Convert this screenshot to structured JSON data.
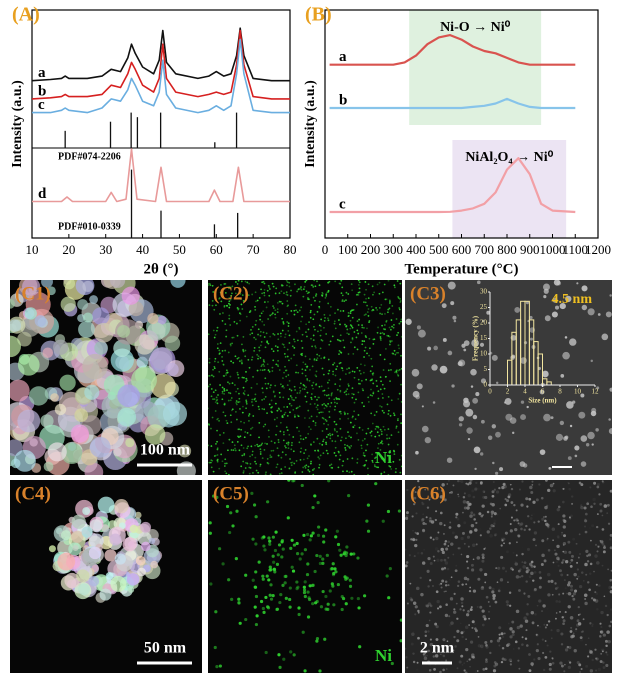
{
  "chart_data": [
    {
      "type": "line",
      "panel_label": "(A)",
      "xlabel": "2θ (°)",
      "ylabel": "Intensity (a.u.)",
      "xlim": [
        10,
        80
      ],
      "xticks": [
        10,
        20,
        30,
        40,
        50,
        60,
        70,
        80
      ],
      "ylim": [
        0,
        100
      ],
      "series": [
        {
          "name": "a",
          "color": "#111111",
          "x": [
            10,
            15,
            18,
            19,
            20,
            25,
            29,
            31.5,
            34,
            36,
            37,
            38,
            40,
            43,
            44.5,
            45.5,
            46.5,
            49,
            55,
            58,
            60,
            62,
            64,
            65.5,
            66.5,
            67.5,
            70,
            75,
            80
          ],
          "values": [
            69,
            69.5,
            70,
            71,
            70,
            70,
            71,
            74,
            73,
            79,
            85,
            81,
            75,
            72,
            78,
            91,
            77,
            72,
            70,
            71,
            73,
            71,
            72,
            80,
            92,
            80,
            70,
            69,
            69
          ]
        },
        {
          "name": "b",
          "color": "#d62020",
          "x": [
            10,
            15,
            18,
            19,
            20,
            25,
            29,
            31.5,
            34,
            36,
            37,
            38,
            40,
            43,
            44.5,
            45.5,
            46.5,
            49,
            55,
            58,
            60,
            62,
            64,
            65.5,
            66.5,
            67.5,
            70,
            75,
            80
          ],
          "values": [
            61,
            61.5,
            62,
            63,
            62,
            62,
            63,
            67,
            66,
            72,
            77,
            74,
            67,
            64,
            70,
            85,
            70,
            64,
            62,
            63,
            64,
            63,
            64,
            76,
            91,
            76,
            62,
            61,
            61
          ]
        },
        {
          "name": "c",
          "color": "#6aaee0",
          "x": [
            10,
            15,
            18,
            19,
            20,
            25,
            29,
            31.5,
            34,
            36,
            37,
            38,
            40,
            43,
            44.5,
            45.5,
            46.5,
            49,
            55,
            58,
            60,
            62,
            64,
            65.5,
            66.5,
            67.5,
            70,
            75,
            80
          ],
          "values": [
            55,
            55,
            56,
            57,
            56,
            55,
            57,
            61,
            60,
            65,
            70,
            67,
            60,
            58,
            64,
            78,
            63,
            57,
            55,
            56,
            58,
            56,
            58,
            72,
            87,
            72,
            56,
            55,
            55
          ]
        },
        {
          "name": "d",
          "color": "#e89a9a",
          "x": [
            10,
            18,
            19.5,
            21,
            30,
            31.5,
            33,
            35.5,
            37,
            38.5,
            43.5,
            45,
            46.5,
            58,
            59.5,
            61,
            64.5,
            66,
            67.5,
            80
          ],
          "values": [
            16,
            16,
            18,
            16,
            16,
            20,
            16,
            17,
            39,
            17,
            16,
            31,
            16,
            16,
            21,
            16,
            16,
            31,
            16,
            16
          ]
        }
      ],
      "reference_patterns": [
        {
          "name": "PDF#074-2206",
          "color": "#111111",
          "x": [
            19,
            31.3,
            36.9,
            38.6,
            44.9,
            59.6,
            65.5
          ],
          "values": [
            47,
            51,
            55,
            53,
            55,
            42,
            55
          ]
        },
        {
          "name": "PDF#010-0339",
          "color": "#111111",
          "x": [
            37,
            45,
            59.5,
            65.8
          ],
          "values": [
            30,
            12,
            6,
            11
          ]
        }
      ]
    },
    {
      "type": "line",
      "panel_label": "(B)",
      "xlabel": "Temperature (°C)",
      "ylabel": "Intensity (a.u.)",
      "xlim": [
        0,
        1200
      ],
      "xticks": [
        0,
        100,
        200,
        300,
        400,
        500,
        600,
        700,
        800,
        900,
        1000,
        1100,
        1200
      ],
      "ylim": [
        0,
        100
      ],
      "regions": [
        {
          "label": "Ni-O → Ni⁰",
          "xlim": [
            370,
            950
          ],
          "color": "rgba(196,230,196,0.55)"
        },
        {
          "label": "NiAl₂O₄ → Ni⁰",
          "xlim": [
            560,
            1060
          ],
          "color": "rgba(226,214,236,0.65)"
        }
      ],
      "series": [
        {
          "name": "a",
          "color": "#d9534f",
          "x": [
            20,
            100,
            200,
            300,
            350,
            400,
            450,
            500,
            550,
            600,
            650,
            700,
            750,
            800,
            850,
            900,
            950,
            1000,
            1100
          ],
          "values": [
            76,
            76,
            76,
            76,
            77,
            80,
            85,
            88,
            89,
            87,
            84,
            82,
            81,
            79,
            77,
            76,
            76,
            76,
            76
          ]
        },
        {
          "name": "b",
          "color": "#87c4ea",
          "x": [
            20,
            100,
            200,
            300,
            350,
            400,
            450,
            500,
            550,
            600,
            650,
            700,
            750,
            800,
            850,
            900,
            950,
            1000,
            1100
          ],
          "values": [
            57,
            57,
            57,
            57,
            57,
            57,
            57,
            57,
            57,
            57,
            57.5,
            58,
            59,
            61,
            59,
            57.5,
            57,
            57,
            57
          ]
        },
        {
          "name": "c",
          "color": "#f2a0a6",
          "x": [
            20,
            100,
            200,
            300,
            350,
            400,
            450,
            500,
            550,
            600,
            650,
            700,
            750,
            800,
            850,
            900,
            950,
            1000,
            1100
          ],
          "values": [
            11.4,
            11.4,
            11.4,
            11.4,
            11.4,
            11.4,
            11.4,
            11.4,
            11.5,
            12,
            13,
            15,
            20,
            30,
            35,
            28,
            15,
            12,
            11.4
          ]
        }
      ]
    },
    {
      "type": "histogram",
      "xlabel": "Size (nm)",
      "ylabel": "Frequency (%)",
      "annotation": "4.5 nm",
      "xlim": [
        0,
        12
      ],
      "xticks": [
        0,
        2,
        4,
        6,
        8,
        10,
        12
      ],
      "ylim": [
        0,
        30
      ],
      "yticks": [
        0,
        5,
        10,
        15,
        20,
        25,
        30
      ],
      "bins": [
        2,
        2.5,
        3,
        3.5,
        4,
        4.5,
        5,
        5.5,
        6,
        6.5,
        7
      ],
      "values": [
        8,
        17,
        21,
        27,
        27,
        21,
        14,
        10,
        2,
        1
      ],
      "color": "#f3e6a0"
    }
  ],
  "images": [
    {
      "label": "(C1)",
      "scale_bar": "100 nm"
    },
    {
      "label": "(C2)",
      "element": "Ni"
    },
    {
      "label": "(C3)"
    },
    {
      "label": "(C4)",
      "scale_bar": "50 nm"
    },
    {
      "label": "(C5)",
      "element": "Ni"
    },
    {
      "label": "(C6)",
      "scale_bar": "2 nm"
    }
  ]
}
